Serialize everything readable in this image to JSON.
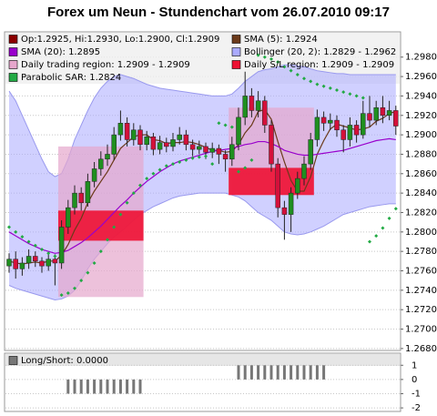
{
  "chart_data": {
    "type": "candlestick",
    "title": "Forex um Neun - Stundenchart vom 26.07.2010 09:17",
    "ohlc": {
      "name": "Op:1.2925, Hi:1.2930, Lo:1.2900, Cl:1.2909",
      "color": "#8b0000",
      "up_color": "#1f8f1f",
      "down_color": "#d4103a",
      "open": [
        1.2765,
        1.2772,
        1.2762,
        1.2768,
        1.2775,
        1.277,
        1.2765,
        1.2772,
        1.2768,
        1.2805,
        1.2825,
        1.284,
        1.283,
        1.2852,
        1.2865,
        1.2875,
        1.288,
        1.29,
        1.2912,
        1.2895,
        1.2905,
        1.289,
        1.2898,
        1.2885,
        1.2892,
        1.2888,
        1.2895,
        1.29,
        1.289,
        1.2885,
        1.2888,
        1.2882,
        1.2886,
        1.288,
        1.2875,
        1.289,
        1.2918,
        1.294,
        1.2925,
        1.2935,
        1.291,
        1.287,
        1.2825,
        1.2818,
        1.284,
        1.2855,
        1.287,
        1.2895,
        1.2918,
        1.2912,
        1.2915,
        1.2905,
        1.2895,
        1.291,
        1.29,
        1.2922,
        1.2915,
        1.2928,
        1.292,
        1.2925
      ],
      "high": [
        1.2778,
        1.278,
        1.2774,
        1.2782,
        1.278,
        1.2774,
        1.2778,
        1.2777,
        1.2812,
        1.2833,
        1.2848,
        1.2846,
        1.286,
        1.2872,
        1.2883,
        1.289,
        1.2908,
        1.2925,
        1.2918,
        1.2912,
        1.291,
        1.2904,
        1.2902,
        1.2899,
        1.2897,
        1.2902,
        1.2908,
        1.2905,
        1.2895,
        1.2894,
        1.2892,
        1.2892,
        1.289,
        1.2884,
        1.2898,
        1.2928,
        1.2965,
        1.2948,
        1.2945,
        1.294,
        1.2915,
        1.2876,
        1.2832,
        1.2846,
        1.2862,
        1.2878,
        1.2902,
        1.2926,
        1.2924,
        1.2922,
        1.292,
        1.291,
        1.2918,
        1.2915,
        1.2935,
        1.294,
        1.2935,
        1.294,
        1.2935,
        1.293
      ],
      "low": [
        1.2758,
        1.2752,
        1.2755,
        1.2762,
        1.2764,
        1.2758,
        1.276,
        1.2745,
        1.2762,
        1.2798,
        1.2818,
        1.2822,
        1.2826,
        1.2846,
        1.2858,
        1.2868,
        1.2874,
        1.2894,
        1.2888,
        1.2889,
        1.2884,
        1.2884,
        1.2879,
        1.288,
        1.2882,
        1.2883,
        1.289,
        1.2884,
        1.2878,
        1.288,
        1.2875,
        1.2876,
        1.287,
        1.2862,
        1.2868,
        1.2884,
        1.291,
        1.2918,
        1.2918,
        1.2902,
        1.2862,
        1.2815,
        1.2792,
        1.28,
        1.2834,
        1.2848,
        1.2864,
        1.2888,
        1.2904,
        1.2905,
        1.2898,
        1.2882,
        1.2888,
        1.2892,
        1.2896,
        1.2908,
        1.291,
        1.2912,
        1.2915,
        1.29
      ],
      "close": [
        1.2772,
        1.2762,
        1.2768,
        1.2775,
        1.277,
        1.2765,
        1.2772,
        1.2768,
        1.2805,
        1.2825,
        1.284,
        1.283,
        1.2852,
        1.2865,
        1.2875,
        1.288,
        1.29,
        1.2912,
        1.2895,
        1.2905,
        1.289,
        1.2898,
        1.2885,
        1.2892,
        1.2888,
        1.2895,
        1.29,
        1.289,
        1.2885,
        1.2888,
        1.2882,
        1.2886,
        1.288,
        1.2875,
        1.289,
        1.2918,
        1.294,
        1.2925,
        1.2935,
        1.291,
        1.287,
        1.2825,
        1.2818,
        1.284,
        1.2855,
        1.287,
        1.2895,
        1.2918,
        1.2912,
        1.2915,
        1.2905,
        1.2895,
        1.291,
        1.29,
        1.2922,
        1.2915,
        1.2928,
        1.292,
        1.2925,
        1.2909
      ]
    },
    "lines": [
      {
        "name": "SMA (5): 1.2924",
        "color": "#6b3a1a",
        "values": [
          1.277,
          1.2768,
          1.2767,
          1.2768,
          1.2769,
          1.2768,
          1.277,
          1.277,
          1.2776,
          1.2787,
          1.2802,
          1.2814,
          1.283,
          1.2842,
          1.2852,
          1.2862,
          1.2874,
          1.2886,
          1.2892,
          1.2898,
          1.29,
          1.29,
          1.2895,
          1.2894,
          1.2891,
          1.2892,
          1.2892,
          1.2893,
          1.2892,
          1.289,
          1.2887,
          1.2884,
          1.2884,
          1.2882,
          1.2883,
          1.289,
          1.2902,
          1.291,
          1.2924,
          1.2926,
          1.2916,
          1.2893,
          1.2872,
          1.2853,
          1.2842,
          1.2842,
          1.2857,
          1.288,
          1.2894,
          1.2906,
          1.2911,
          1.2909,
          1.2907,
          1.2905,
          1.2906,
          1.2908,
          1.2914,
          1.2917,
          1.2922,
          1.2924
        ]
      },
      {
        "name": "SMA (20): 1.2895",
        "color": "#9900cc",
        "values": [
          1.28,
          1.2796,
          1.2792,
          1.2788,
          1.2785,
          1.2782,
          1.278,
          1.2778,
          1.2779,
          1.2781,
          1.2785,
          1.2789,
          1.2794,
          1.28,
          1.2806,
          1.2813,
          1.282,
          1.2827,
          1.2833,
          1.284,
          1.2846,
          1.2852,
          1.2857,
          1.2862,
          1.2866,
          1.287,
          1.2873,
          1.2875,
          1.2877,
          1.2879,
          1.2881,
          1.2883,
          1.2884,
          1.2885,
          1.2886,
          1.2888,
          1.289,
          1.2891,
          1.2893,
          1.2893,
          1.2891,
          1.2888,
          1.2884,
          1.2882,
          1.288,
          1.2879,
          1.2879,
          1.288,
          1.2881,
          1.2882,
          1.2883,
          1.2884,
          1.2886,
          1.2888,
          1.289,
          1.2892,
          1.2894,
          1.2895,
          1.2896,
          1.2895
        ]
      }
    ],
    "bands": {
      "name": "Bollinger (20, 2): 1.2829 - 1.2962",
      "color": "#aaaaff",
      "upper": [
        1.2945,
        1.2935,
        1.292,
        1.2905,
        1.289,
        1.2875,
        1.2862,
        1.2857,
        1.286,
        1.2875,
        1.2895,
        1.291,
        1.2925,
        1.2938,
        1.2948,
        1.2955,
        1.296,
        1.2962,
        1.296,
        1.2958,
        1.2955,
        1.2952,
        1.295,
        1.2948,
        1.2947,
        1.2946,
        1.2945,
        1.2944,
        1.2943,
        1.2942,
        1.2941,
        1.294,
        1.294,
        1.294,
        1.2942,
        1.2948,
        1.2955,
        1.296,
        1.2965,
        1.2967,
        1.2968,
        1.297,
        1.2972,
        1.2972,
        1.2971,
        1.297,
        1.2968,
        1.2966,
        1.2965,
        1.2964,
        1.2963,
        1.2963,
        1.2962,
        1.2962,
        1.2962,
        1.2962,
        1.2962,
        1.2962,
        1.2962,
        1.2962
      ],
      "lower": [
        1.2745,
        1.2742,
        1.274,
        1.2738,
        1.2736,
        1.2734,
        1.2732,
        1.273,
        1.2731,
        1.2734,
        1.274,
        1.275,
        1.2762,
        1.2772,
        1.278,
        1.2788,
        1.2795,
        1.28,
        1.2806,
        1.2812,
        1.2818,
        1.2822,
        1.2826,
        1.2829,
        1.2832,
        1.2835,
        1.2837,
        1.2838,
        1.2839,
        1.284,
        1.284,
        1.284,
        1.284,
        1.284,
        1.2838,
        1.2836,
        1.2832,
        1.2826,
        1.282,
        1.2816,
        1.2812,
        1.2806,
        1.28,
        1.2798,
        1.2797,
        1.2798,
        1.28,
        1.2803,
        1.2806,
        1.281,
        1.2814,
        1.2818,
        1.282,
        1.2822,
        1.2824,
        1.2826,
        1.2827,
        1.2828,
        1.2829,
        1.2829
      ]
    },
    "regions": [
      {
        "name": "Daily trading region: 1.2909 - 1.2909",
        "color": "#e6a6cc",
        "areas": [
          {
            "x": [
              8,
              20
            ],
            "y": [
              1.2733,
              1.2888
            ]
          },
          {
            "x": [
              34,
              46
            ],
            "y": [
              1.2838,
              1.2928
            ]
          }
        ]
      },
      {
        "name": "Daily S/L region: 1.2909 - 1.2909",
        "color": "#ee1133",
        "areas": [
          {
            "x": [
              8,
              20
            ],
            "y": [
              1.2791,
              1.2822
            ]
          },
          {
            "x": [
              34,
              46
            ],
            "y": [
              1.2838,
              1.2866
            ]
          }
        ]
      }
    ],
    "sar": {
      "name": "Parabolic SAR: 1.2824",
      "color": "#22aa44",
      "values": [
        1.2805,
        1.28,
        1.2795,
        1.279,
        1.2786,
        1.2782,
        1.2778,
        1.2775,
        1.2735,
        1.2737,
        1.2742,
        1.275,
        1.2758,
        1.2768,
        1.278,
        1.2792,
        1.2805,
        1.2818,
        1.283,
        1.284,
        1.2848,
        1.2855,
        1.286,
        1.2864,
        1.2868,
        1.287,
        1.2872,
        1.2874,
        1.2876,
        1.2877,
        1.2878,
        1.287,
        1.2912,
        1.291,
        1.2908,
        1.2862,
        1.2866,
        1.2874,
        1.2982,
        1.298,
        1.2978,
        1.2975,
        1.297,
        1.2966,
        1.2962,
        1.2958,
        1.2955,
        1.2952,
        1.295,
        1.2948,
        1.2946,
        1.2944,
        1.2942,
        1.294,
        1.2938,
        1.279,
        1.2796,
        1.2804,
        1.2814,
        1.2824
      ]
    },
    "ylim": [
      1.2678,
      1.3006
    ],
    "yticks": [
      {
        "value": 1.268,
        "label": "1.2680"
      },
      {
        "value": 1.27,
        "label": "1.2700"
      },
      {
        "value": 1.272,
        "label": "1.2720"
      },
      {
        "value": 1.274,
        "label": "1.2740"
      },
      {
        "value": 1.276,
        "label": "1.2760"
      },
      {
        "value": 1.278,
        "label": "1.2780"
      },
      {
        "value": 1.28,
        "label": "1.2800"
      },
      {
        "value": 1.282,
        "label": "1.2820"
      },
      {
        "value": 1.284,
        "label": "1.2840"
      },
      {
        "value": 1.286,
        "label": "1.2860"
      },
      {
        "value": 1.288,
        "label": "1.2880"
      },
      {
        "value": 1.29,
        "label": "1.2900"
      },
      {
        "value": 1.292,
        "label": "1.2920"
      },
      {
        "value": 1.294,
        "label": "1.2940"
      },
      {
        "value": 1.296,
        "label": "1.2960"
      },
      {
        "value": 1.298,
        "label": "1.2980"
      }
    ],
    "grid": true,
    "lower_panel": {
      "name": "Long/Short: 0.0000",
      "color": "#777777",
      "values": [
        0,
        0,
        0,
        0,
        0,
        0,
        0,
        0,
        0,
        -1,
        -1,
        -1,
        -1,
        -1,
        -1,
        -1,
        -1,
        -1,
        -1,
        -1,
        -1,
        0,
        0,
        0,
        0,
        0,
        0,
        0,
        0,
        0,
        0,
        0,
        0,
        0,
        0,
        1,
        1,
        1,
        1,
        1,
        1,
        1,
        1,
        1,
        1,
        1,
        1,
        1,
        1,
        0,
        0,
        0,
        0,
        0,
        0,
        0,
        0,
        0,
        0,
        0
      ],
      "ylim": [
        -2.25,
        1.85
      ],
      "yticks": [
        1,
        0,
        -1,
        -2
      ]
    }
  }
}
